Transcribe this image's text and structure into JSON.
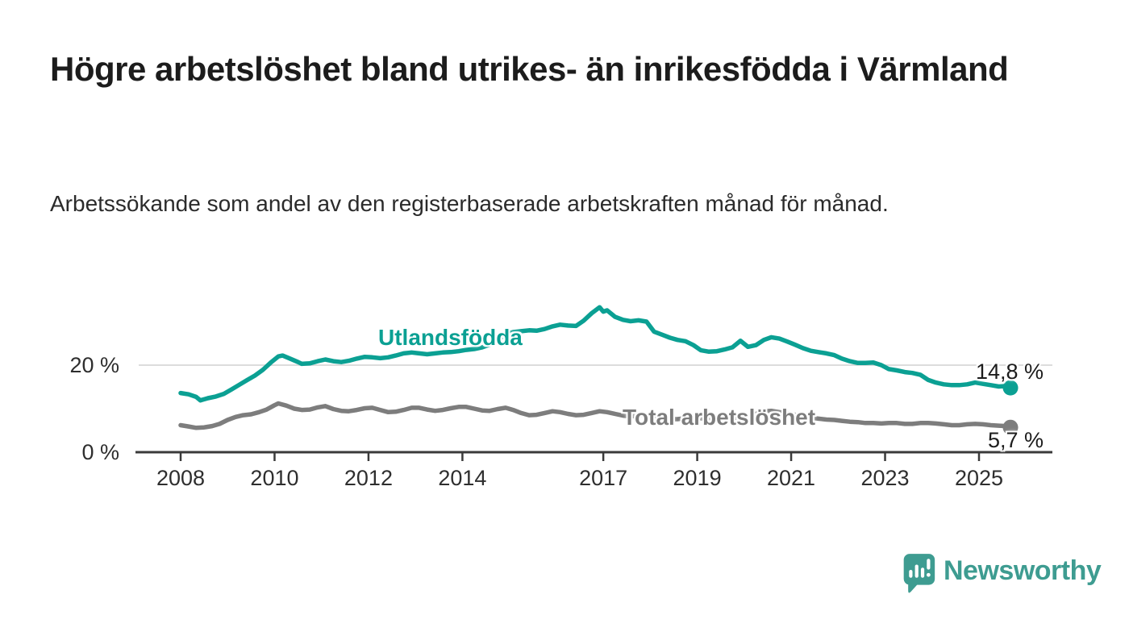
{
  "header": {
    "title": "Högre arbetslöshet bland utrikes- än inrikesfödda i Värmland",
    "subtitle": "Arbetssökande som andel av den registerbaserade arbetskraften månad för månad."
  },
  "footer": {
    "brand": "Newsworthy",
    "brand_color": "#3e9c91"
  },
  "chart_data": {
    "type": "line",
    "title": "Högre arbetslöshet bland utrikes- än inrikesfödda i Värmland",
    "subtitle": "Arbetssökande som andel av den registerbaserade arbetskraften månad för månad.",
    "unit": "%",
    "grid": "horizontal gridline at 20 % only",
    "legend_position": "inline labels on lines, end-value labels at right",
    "xlim": [
      2007.1,
      2026.5
    ],
    "ylim": [
      0,
      35
    ],
    "x_ticks": [
      "2008",
      "2010",
      "2012",
      "2014",
      "2017",
      "2019",
      "2021",
      "2023",
      "2025"
    ],
    "x_tick_years": [
      2008,
      2010,
      2012,
      2014,
      2017,
      2019,
      2021,
      2023,
      2025
    ],
    "y_ticks": [
      {
        "value": 0,
        "label": "0 %"
      },
      {
        "value": 20,
        "label": "20 %"
      }
    ],
    "axis_color": "#3a3a3a",
    "gridline_color": "#dcdcdc",
    "series": [
      {
        "name": "Utlandsfödda",
        "color": "#0ba093",
        "end_label": "14,8 %",
        "end_value": 14.8,
        "points": [
          [
            2008.0,
            13.6
          ],
          [
            2008.17,
            13.3
          ],
          [
            2008.33,
            12.7
          ],
          [
            2008.42,
            11.9
          ],
          [
            2008.58,
            12.4
          ],
          [
            2008.75,
            12.8
          ],
          [
            2008.92,
            13.4
          ],
          [
            2009.08,
            14.4
          ],
          [
            2009.25,
            15.5
          ],
          [
            2009.42,
            16.6
          ],
          [
            2009.58,
            17.6
          ],
          [
            2009.75,
            18.9
          ],
          [
            2009.92,
            20.6
          ],
          [
            2010.08,
            22.0
          ],
          [
            2010.17,
            22.2
          ],
          [
            2010.33,
            21.5
          ],
          [
            2010.5,
            20.7
          ],
          [
            2010.58,
            20.3
          ],
          [
            2010.75,
            20.4
          ],
          [
            2010.92,
            20.9
          ],
          [
            2011.08,
            21.3
          ],
          [
            2011.25,
            20.9
          ],
          [
            2011.42,
            20.7
          ],
          [
            2011.58,
            21.0
          ],
          [
            2011.75,
            21.5
          ],
          [
            2011.92,
            21.9
          ],
          [
            2012.08,
            21.8
          ],
          [
            2012.25,
            21.6
          ],
          [
            2012.42,
            21.8
          ],
          [
            2012.58,
            22.2
          ],
          [
            2012.75,
            22.7
          ],
          [
            2012.92,
            22.9
          ],
          [
            2013.08,
            22.7
          ],
          [
            2013.25,
            22.5
          ],
          [
            2013.42,
            22.7
          ],
          [
            2013.58,
            22.9
          ],
          [
            2013.75,
            23.0
          ],
          [
            2013.92,
            23.2
          ],
          [
            2014.08,
            23.5
          ],
          [
            2014.25,
            23.7
          ],
          [
            2014.42,
            24.1
          ],
          [
            2014.58,
            24.7
          ],
          [
            2014.75,
            25.8
          ],
          [
            2014.92,
            27.1
          ],
          [
            2015.08,
            27.6
          ],
          [
            2015.25,
            27.8
          ],
          [
            2015.42,
            28.0
          ],
          [
            2015.58,
            27.9
          ],
          [
            2015.75,
            28.3
          ],
          [
            2015.92,
            28.9
          ],
          [
            2016.08,
            29.3
          ],
          [
            2016.25,
            29.1
          ],
          [
            2016.42,
            29.0
          ],
          [
            2016.58,
            30.2
          ],
          [
            2016.75,
            31.9
          ],
          [
            2016.92,
            33.3
          ],
          [
            2017.0,
            32.3
          ],
          [
            2017.08,
            32.6
          ],
          [
            2017.25,
            31.1
          ],
          [
            2017.42,
            30.4
          ],
          [
            2017.58,
            30.1
          ],
          [
            2017.75,
            30.3
          ],
          [
            2017.92,
            30.0
          ],
          [
            2018.08,
            27.7
          ],
          [
            2018.25,
            27.0
          ],
          [
            2018.42,
            26.3
          ],
          [
            2018.58,
            25.8
          ],
          [
            2018.75,
            25.5
          ],
          [
            2018.92,
            24.6
          ],
          [
            2019.08,
            23.4
          ],
          [
            2019.25,
            23.1
          ],
          [
            2019.42,
            23.2
          ],
          [
            2019.58,
            23.6
          ],
          [
            2019.75,
            24.1
          ],
          [
            2019.92,
            25.6
          ],
          [
            2020.08,
            24.2
          ],
          [
            2020.25,
            24.6
          ],
          [
            2020.42,
            25.8
          ],
          [
            2020.58,
            26.4
          ],
          [
            2020.75,
            26.1
          ],
          [
            2020.92,
            25.4
          ],
          [
            2021.08,
            24.7
          ],
          [
            2021.25,
            23.9
          ],
          [
            2021.42,
            23.3
          ],
          [
            2021.58,
            23.0
          ],
          [
            2021.75,
            22.7
          ],
          [
            2021.92,
            22.3
          ],
          [
            2022.08,
            21.5
          ],
          [
            2022.25,
            20.9
          ],
          [
            2022.42,
            20.5
          ],
          [
            2022.58,
            20.5
          ],
          [
            2022.75,
            20.6
          ],
          [
            2022.92,
            20.0
          ],
          [
            2023.08,
            19.1
          ],
          [
            2023.25,
            18.8
          ],
          [
            2023.42,
            18.4
          ],
          [
            2023.58,
            18.2
          ],
          [
            2023.75,
            17.8
          ],
          [
            2023.92,
            16.6
          ],
          [
            2024.08,
            16.0
          ],
          [
            2024.25,
            15.6
          ],
          [
            2024.42,
            15.4
          ],
          [
            2024.58,
            15.4
          ],
          [
            2024.75,
            15.6
          ],
          [
            2024.92,
            16.0
          ],
          [
            2025.08,
            15.7
          ],
          [
            2025.25,
            15.4
          ],
          [
            2025.42,
            15.1
          ],
          [
            2025.58,
            15.2
          ],
          [
            2025.67,
            14.8
          ]
        ]
      },
      {
        "name": "Total arbetslöshet",
        "color": "#7d7d7d",
        "end_label": "5,7 %",
        "end_value": 5.7,
        "points": [
          [
            2008.0,
            6.2
          ],
          [
            2008.17,
            5.9
          ],
          [
            2008.33,
            5.6
          ],
          [
            2008.5,
            5.7
          ],
          [
            2008.67,
            6.0
          ],
          [
            2008.83,
            6.5
          ],
          [
            2009.0,
            7.4
          ],
          [
            2009.17,
            8.1
          ],
          [
            2009.33,
            8.5
          ],
          [
            2009.5,
            8.7
          ],
          [
            2009.67,
            9.2
          ],
          [
            2009.83,
            9.8
          ],
          [
            2010.0,
            10.8
          ],
          [
            2010.08,
            11.2
          ],
          [
            2010.25,
            10.7
          ],
          [
            2010.42,
            10.0
          ],
          [
            2010.58,
            9.7
          ],
          [
            2010.75,
            9.8
          ],
          [
            2010.92,
            10.3
          ],
          [
            2011.08,
            10.6
          ],
          [
            2011.25,
            9.9
          ],
          [
            2011.42,
            9.5
          ],
          [
            2011.58,
            9.4
          ],
          [
            2011.75,
            9.7
          ],
          [
            2011.92,
            10.1
          ],
          [
            2012.08,
            10.2
          ],
          [
            2012.25,
            9.7
          ],
          [
            2012.42,
            9.2
          ],
          [
            2012.58,
            9.3
          ],
          [
            2012.75,
            9.7
          ],
          [
            2012.92,
            10.2
          ],
          [
            2013.08,
            10.2
          ],
          [
            2013.25,
            9.8
          ],
          [
            2013.42,
            9.5
          ],
          [
            2013.58,
            9.7
          ],
          [
            2013.75,
            10.1
          ],
          [
            2013.92,
            10.4
          ],
          [
            2014.08,
            10.4
          ],
          [
            2014.25,
            10.0
          ],
          [
            2014.42,
            9.6
          ],
          [
            2014.58,
            9.5
          ],
          [
            2014.75,
            9.9
          ],
          [
            2014.92,
            10.2
          ],
          [
            2015.08,
            9.7
          ],
          [
            2015.25,
            9.0
          ],
          [
            2015.42,
            8.5
          ],
          [
            2015.58,
            8.6
          ],
          [
            2015.75,
            9.0
          ],
          [
            2015.92,
            9.4
          ],
          [
            2016.08,
            9.2
          ],
          [
            2016.25,
            8.8
          ],
          [
            2016.42,
            8.5
          ],
          [
            2016.58,
            8.6
          ],
          [
            2016.75,
            9.0
          ],
          [
            2016.92,
            9.4
          ],
          [
            2017.08,
            9.2
          ],
          [
            2017.25,
            8.8
          ],
          [
            2017.42,
            8.4
          ],
          [
            2017.58,
            8.2
          ],
          [
            2017.75,
            8.4
          ],
          [
            2017.92,
            8.6
          ],
          [
            2018.08,
            8.3
          ],
          [
            2018.25,
            7.9
          ],
          [
            2018.42,
            7.6
          ],
          [
            2018.58,
            7.6
          ],
          [
            2018.75,
            7.8
          ],
          [
            2018.92,
            8.0
          ],
          [
            2019.08,
            7.8
          ],
          [
            2019.25,
            7.5
          ],
          [
            2019.42,
            7.4
          ],
          [
            2019.58,
            7.5
          ],
          [
            2019.75,
            7.8
          ],
          [
            2019.92,
            8.1
          ],
          [
            2020.08,
            8.3
          ],
          [
            2020.25,
            8.8
          ],
          [
            2020.42,
            9.4
          ],
          [
            2020.58,
            9.5
          ],
          [
            2020.75,
            9.2
          ],
          [
            2020.92,
            8.9
          ],
          [
            2021.08,
            8.6
          ],
          [
            2021.25,
            8.2
          ],
          [
            2021.42,
            7.9
          ],
          [
            2021.58,
            7.7
          ],
          [
            2021.75,
            7.5
          ],
          [
            2021.92,
            7.4
          ],
          [
            2022.08,
            7.2
          ],
          [
            2022.25,
            7.0
          ],
          [
            2022.42,
            6.9
          ],
          [
            2022.58,
            6.7
          ],
          [
            2022.75,
            6.7
          ],
          [
            2022.92,
            6.6
          ],
          [
            2023.08,
            6.7
          ],
          [
            2023.25,
            6.7
          ],
          [
            2023.42,
            6.5
          ],
          [
            2023.58,
            6.5
          ],
          [
            2023.75,
            6.7
          ],
          [
            2023.92,
            6.7
          ],
          [
            2024.08,
            6.6
          ],
          [
            2024.25,
            6.4
          ],
          [
            2024.42,
            6.2
          ],
          [
            2024.58,
            6.2
          ],
          [
            2024.75,
            6.4
          ],
          [
            2024.92,
            6.5
          ],
          [
            2025.08,
            6.4
          ],
          [
            2025.25,
            6.2
          ],
          [
            2025.42,
            6.1
          ],
          [
            2025.58,
            6.0
          ],
          [
            2025.67,
            5.7
          ]
        ]
      }
    ]
  }
}
